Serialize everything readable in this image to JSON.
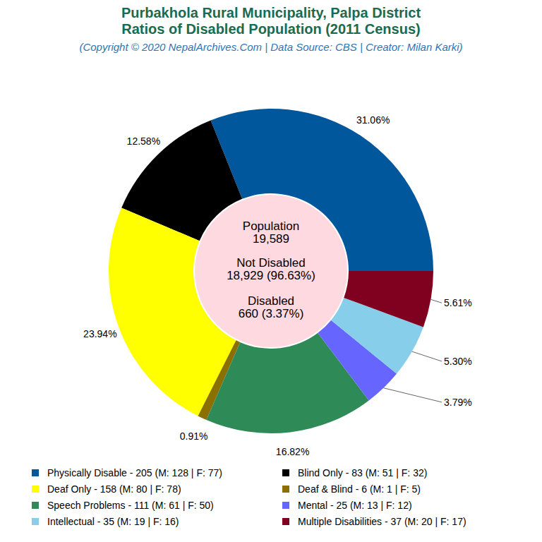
{
  "chart_data": {
    "type": "pie",
    "title": [
      "Purbakhola Rural Municipality, Palpa District",
      "Ratios of Disabled Population (2011 Census)"
    ],
    "subtitle": "(Copyright © 2020 NepalArchives.Com | Data Source: CBS | Creator: Milan Karki)",
    "categories": [
      "Physically Disable",
      "Blind Only",
      "Deaf Only",
      "Deaf & Blind",
      "Speech Problems",
      "Mental",
      "Intellectual",
      "Multiple Disabilities"
    ],
    "values": [
      31.06,
      12.58,
      23.94,
      0.91,
      16.82,
      3.79,
      5.3,
      5.61
    ],
    "value_labels": [
      "31.06%",
      "12.58%",
      "23.94%",
      "0.91%",
      "16.82%",
      "3.79%",
      "5.30%",
      "5.61%"
    ],
    "colors": [
      "#01579b",
      "#000000",
      "#ffff00",
      "#8b7000",
      "#2e8b57",
      "#6666ff",
      "#87ceeb",
      "#800020"
    ],
    "legend_labels": [
      "Physically Disable - 205 (M: 128 | F: 77)",
      "Blind Only - 83 (M: 51 | F: 32)",
      "Deaf Only - 158 (M: 80 | F: 78)",
      "Deaf & Blind - 6 (M: 1 | F: 5)",
      "Speech Problems - 111 (M: 61 | F: 50)",
      "Mental - 25 (M: 13 | F: 12)",
      "Intellectual - 35 (M: 19 | F: 16)",
      "Multiple Disabilities - 37 (M: 20 | F: 17)"
    ],
    "center_text": [
      "Population",
      "19,589",
      "Not Disabled",
      "18,929 (96.63%)",
      "Disabled",
      "660 (3.37%)"
    ]
  }
}
